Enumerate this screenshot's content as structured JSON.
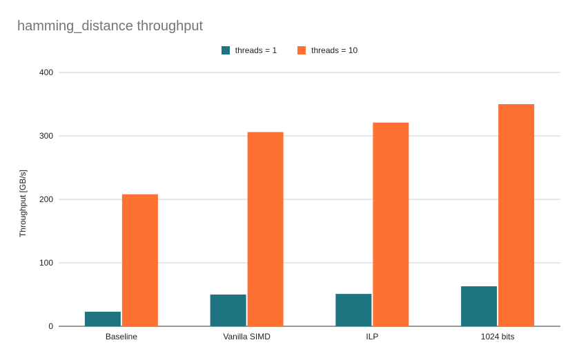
{
  "chart_data": {
    "type": "bar",
    "title": "hamming_distance throughput",
    "ylabel": "Throughput [GB/s]",
    "xlabel": "",
    "categories": [
      "Baseline",
      "Vanilla SIMD",
      "ILP",
      "1024 bits"
    ],
    "series": [
      {
        "name": "threads = 1",
        "color": "#1f7482",
        "values": [
          23,
          50,
          51,
          63
        ]
      },
      {
        "name": "threads = 10",
        "color": "#ff7033",
        "values": [
          208,
          306,
          321,
          350
        ]
      }
    ],
    "ylim": [
      0,
      400
    ],
    "yticks": [
      "0",
      "100",
      "200",
      "300",
      "400"
    ],
    "grid": true,
    "legend_position": "top"
  }
}
